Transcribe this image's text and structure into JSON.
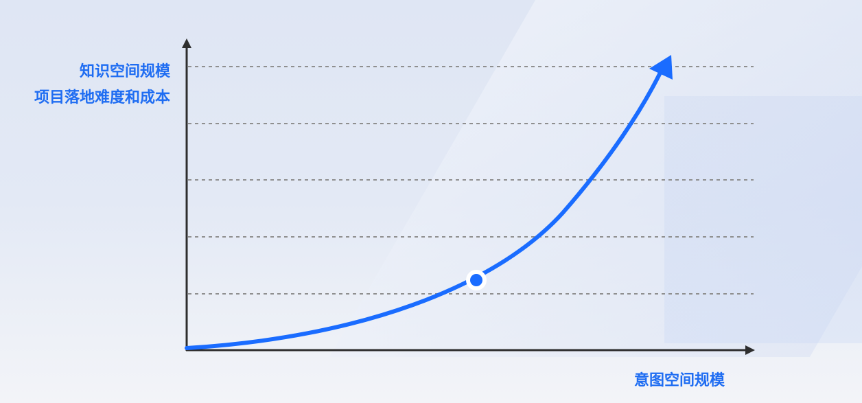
{
  "y_axis_labels": [
    "知识空间规模",
    "项目落地难度和成本"
  ],
  "x_axis_label": "意图空间规模",
  "colors": {
    "accent": "#1a6cff",
    "axis": "#2e2e2e",
    "gridline": "#8f8f8f"
  },
  "gridlines": 5,
  "curve_shape": "exponential-growth",
  "marker": "highlighted-point-on-curve"
}
